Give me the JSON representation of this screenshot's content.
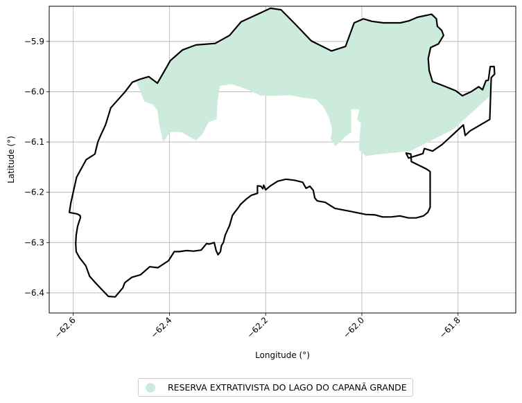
{
  "chart_data": {
    "type": "map",
    "xlabel": "Longitude (°)",
    "ylabel": "Latitude (°)",
    "xlim": [
      -62.65,
      -61.68
    ],
    "ylim": [
      -6.44,
      -5.83
    ],
    "grid": true,
    "x_ticks": [
      {
        "value": -62.6,
        "label": "−62.6"
      },
      {
        "value": -62.4,
        "label": "−62.4"
      },
      {
        "value": -62.2,
        "label": "−62.2"
      },
      {
        "value": -62.0,
        "label": "−62.0"
      },
      {
        "value": -61.8,
        "label": "−61.8"
      }
    ],
    "y_ticks": [
      {
        "value": -5.9,
        "label": "−5.9"
      },
      {
        "value": -6.0,
        "label": "−6.0"
      },
      {
        "value": -6.1,
        "label": "−6.1"
      },
      {
        "value": -6.2,
        "label": "−6.2"
      },
      {
        "value": -6.3,
        "label": "−6.3"
      },
      {
        "value": -6.4,
        "label": "−6.4"
      }
    ],
    "legend": {
      "placement": "bottom-center",
      "entries": [
        {
          "label": "RESERVA EXTRATIVISTA DO LAGO DO CAPANÃ GRANDE",
          "color": "#cdebdd",
          "marker": "circle"
        }
      ]
    },
    "layers": [
      {
        "kind": "outline",
        "stroke": "#000000",
        "coords": [
          [
            -62.461,
            -5.975
          ],
          [
            -62.443,
            -5.97
          ],
          [
            -62.425,
            -5.983
          ],
          [
            -62.398,
            -5.938
          ],
          [
            -62.373,
            -5.917
          ],
          [
            -62.345,
            -5.907
          ],
          [
            -62.305,
            -5.904
          ],
          [
            -62.275,
            -5.888
          ],
          [
            -62.251,
            -5.861
          ],
          [
            -62.208,
            -5.842
          ],
          [
            -62.19,
            -5.834
          ],
          [
            -62.168,
            -5.837
          ],
          [
            -62.138,
            -5.866
          ],
          [
            -62.105,
            -5.899
          ],
          [
            -62.063,
            -5.919
          ],
          [
            -62.034,
            -5.91
          ],
          [
            -62.016,
            -5.863
          ],
          [
            -61.997,
            -5.855
          ],
          [
            -61.979,
            -5.86
          ],
          [
            -61.955,
            -5.863
          ],
          [
            -61.92,
            -5.863
          ],
          [
            -61.902,
            -5.859
          ],
          [
            -61.885,
            -5.852
          ],
          [
            -61.855,
            -5.846
          ],
          [
            -61.845,
            -5.855
          ],
          [
            -61.843,
            -5.87
          ],
          [
            -61.834,
            -5.878
          ],
          [
            -61.83,
            -5.888
          ],
          [
            -61.841,
            -5.905
          ],
          [
            -61.857,
            -5.912
          ],
          [
            -61.862,
            -5.934
          ],
          [
            -61.86,
            -5.958
          ],
          [
            -61.853,
            -5.98
          ],
          [
            -61.828,
            -5.989
          ],
          [
            -61.805,
            -5.998
          ],
          [
            -61.791,
            -6.008
          ],
          [
            -61.773,
            -6.0
          ],
          [
            -61.757,
            -5.99
          ],
          [
            -61.749,
            -5.996
          ],
          [
            -61.742,
            -5.978
          ],
          [
            -61.737,
            -5.977
          ],
          [
            -61.733,
            -5.95
          ],
          [
            -61.725,
            -5.95
          ],
          [
            -61.724,
            -5.965
          ],
          [
            -61.731,
            -5.972
          ],
          [
            -61.734,
            -6.055
          ],
          [
            -61.775,
            -6.078
          ],
          [
            -61.785,
            -6.087
          ],
          [
            -61.789,
            -6.066
          ],
          [
            -61.833,
            -6.105
          ],
          [
            -61.853,
            -6.118
          ],
          [
            -61.87,
            -6.113
          ],
          [
            -61.873,
            -6.123
          ],
          [
            -61.903,
            -6.132
          ],
          [
            -61.908,
            -6.122
          ],
          [
            -61.898,
            -6.124
          ],
          [
            -61.897,
            -6.139
          ],
          [
            -61.867,
            -6.153
          ],
          [
            -61.862,
            -6.156
          ],
          [
            -61.858,
            -6.159
          ],
          [
            -61.858,
            -6.23
          ],
          [
            -61.863,
            -6.24
          ],
          [
            -61.872,
            -6.247
          ],
          [
            -61.887,
            -6.251
          ],
          [
            -61.903,
            -6.251
          ],
          [
            -61.921,
            -6.247
          ],
          [
            -61.939,
            -6.249
          ],
          [
            -61.957,
            -6.249
          ],
          [
            -61.972,
            -6.245
          ],
          [
            -61.992,
            -6.244
          ],
          [
            -62.023,
            -6.238
          ],
          [
            -62.056,
            -6.232
          ],
          [
            -62.076,
            -6.22
          ],
          [
            -62.093,
            -6.217
          ],
          [
            -62.098,
            -6.211
          ],
          [
            -62.101,
            -6.196
          ],
          [
            -62.108,
            -6.188
          ],
          [
            -62.116,
            -6.192
          ],
          [
            -62.123,
            -6.18
          ],
          [
            -62.14,
            -6.176
          ],
          [
            -62.158,
            -6.174
          ],
          [
            -62.175,
            -6.178
          ],
          [
            -62.19,
            -6.187
          ],
          [
            -62.2,
            -6.195
          ],
          [
            -62.204,
            -6.186
          ],
          [
            -62.206,
            -6.193
          ],
          [
            -62.21,
            -6.188
          ],
          [
            -62.217,
            -6.187
          ],
          [
            -62.217,
            -6.202
          ],
          [
            -62.23,
            -6.206
          ],
          [
            -62.241,
            -6.214
          ],
          [
            -62.252,
            -6.224
          ],
          [
            -62.258,
            -6.232
          ],
          [
            -62.263,
            -6.238
          ],
          [
            -62.269,
            -6.246
          ],
          [
            -62.275,
            -6.266
          ],
          [
            -62.284,
            -6.285
          ],
          [
            -62.288,
            -6.3
          ],
          [
            -62.292,
            -6.306
          ],
          [
            -62.294,
            -6.318
          ],
          [
            -62.299,
            -6.324
          ],
          [
            -62.303,
            -6.316
          ],
          [
            -62.307,
            -6.3
          ],
          [
            -62.317,
            -6.303
          ],
          [
            -62.323,
            -6.302
          ],
          [
            -62.334,
            -6.315
          ],
          [
            -62.35,
            -6.317
          ],
          [
            -62.364,
            -6.316
          ],
          [
            -62.38,
            -6.318
          ],
          [
            -62.39,
            -6.318
          ],
          [
            -62.402,
            -6.336
          ],
          [
            -62.424,
            -6.35
          ],
          [
            -62.441,
            -6.348
          ],
          [
            -62.46,
            -6.364
          ],
          [
            -62.478,
            -6.369
          ],
          [
            -62.493,
            -6.38
          ],
          [
            -62.497,
            -6.39
          ],
          [
            -62.513,
            -6.408
          ],
          [
            -62.527,
            -6.407
          ],
          [
            -62.552,
            -6.382
          ],
          [
            -62.566,
            -6.367
          ],
          [
            -62.574,
            -6.346
          ],
          [
            -62.587,
            -6.33
          ],
          [
            -62.594,
            -6.318
          ],
          [
            -62.595,
            -6.302
          ],
          [
            -62.594,
            -6.285
          ],
          [
            -62.591,
            -6.268
          ],
          [
            -62.585,
            -6.25
          ],
          [
            -62.586,
            -6.246
          ],
          [
            -62.592,
            -6.243
          ],
          [
            -62.608,
            -6.24
          ],
          [
            -62.605,
            -6.221
          ],
          [
            -62.593,
            -6.17
          ],
          [
            -62.573,
            -6.135
          ],
          [
            -62.555,
            -6.124
          ],
          [
            -62.549,
            -6.1
          ],
          [
            -62.543,
            -6.087
          ],
          [
            -62.533,
            -6.066
          ],
          [
            -62.522,
            -6.032
          ],
          [
            -62.493,
            -6.001
          ],
          [
            -62.477,
            -5.981
          ],
          [
            -62.461,
            -5.975
          ]
        ]
      },
      {
        "kind": "fill",
        "name": "RESERVA EXTRATIVISTA DO LAGO DO CAPANÃ GRANDE",
        "color": "#cdebdd",
        "coords": [
          [
            -62.47,
            -5.977
          ],
          [
            -62.443,
            -5.97
          ],
          [
            -62.425,
            -5.983
          ],
          [
            -62.398,
            -5.938
          ],
          [
            -62.373,
            -5.917
          ],
          [
            -62.345,
            -5.907
          ],
          [
            -62.305,
            -5.904
          ],
          [
            -62.275,
            -5.888
          ],
          [
            -62.251,
            -5.861
          ],
          [
            -62.208,
            -5.842
          ],
          [
            -62.19,
            -5.834
          ],
          [
            -62.168,
            -5.837
          ],
          [
            -62.138,
            -5.866
          ],
          [
            -62.105,
            -5.899
          ],
          [
            -62.063,
            -5.919
          ],
          [
            -62.034,
            -5.91
          ],
          [
            -62.016,
            -5.863
          ],
          [
            -61.997,
            -5.855
          ],
          [
            -61.979,
            -5.86
          ],
          [
            -61.955,
            -5.863
          ],
          [
            -61.92,
            -5.863
          ],
          [
            -61.902,
            -5.859
          ],
          [
            -61.885,
            -5.852
          ],
          [
            -61.855,
            -5.846
          ],
          [
            -61.845,
            -5.855
          ],
          [
            -61.843,
            -5.87
          ],
          [
            -61.834,
            -5.878
          ],
          [
            -61.83,
            -5.888
          ],
          [
            -61.841,
            -5.905
          ],
          [
            -61.857,
            -5.912
          ],
          [
            -61.862,
            -5.934
          ],
          [
            -61.86,
            -5.958
          ],
          [
            -61.853,
            -5.98
          ],
          [
            -61.828,
            -5.989
          ],
          [
            -61.805,
            -5.998
          ],
          [
            -61.791,
            -6.008
          ],
          [
            -61.773,
            -6.0
          ],
          [
            -61.757,
            -5.99
          ],
          [
            -61.749,
            -5.996
          ],
          [
            -61.742,
            -5.978
          ],
          [
            -61.737,
            -5.977
          ],
          [
            -61.731,
            -5.985
          ],
          [
            -61.733,
            -6.008
          ],
          [
            -61.81,
            -6.075
          ],
          [
            -61.9,
            -6.118
          ],
          [
            -61.97,
            -6.125
          ],
          [
            -61.992,
            -6.128
          ],
          [
            -62.006,
            -6.115
          ],
          [
            -62.005,
            -6.095
          ],
          [
            -62.002,
            -6.063
          ],
          [
            -62.01,
            -6.055
          ],
          [
            -62.005,
            -6.035
          ],
          [
            -62.022,
            -6.035
          ],
          [
            -62.022,
            -6.08
          ],
          [
            -62.035,
            -6.09
          ],
          [
            -62.045,
            -6.1
          ],
          [
            -62.055,
            -6.108
          ],
          [
            -62.065,
            -6.094
          ],
          [
            -62.062,
            -6.075
          ],
          [
            -62.068,
            -6.052
          ],
          [
            -62.08,
            -6.03
          ],
          [
            -62.095,
            -6.015
          ],
          [
            -62.12,
            -6.012
          ],
          [
            -62.15,
            -6.007
          ],
          [
            -62.18,
            -6.008
          ],
          [
            -62.21,
            -6.008
          ],
          [
            -62.24,
            -5.995
          ],
          [
            -62.27,
            -5.985
          ],
          [
            -62.295,
            -5.988
          ],
          [
            -62.3,
            -6.02
          ],
          [
            -62.302,
            -6.055
          ],
          [
            -62.318,
            -6.06
          ],
          [
            -62.332,
            -6.085
          ],
          [
            -62.345,
            -6.097
          ],
          [
            -62.375,
            -6.08
          ],
          [
            -62.398,
            -6.08
          ],
          [
            -62.413,
            -6.1
          ],
          [
            -62.422,
            -6.062
          ],
          [
            -62.425,
            -6.037
          ],
          [
            -62.435,
            -6.025
          ],
          [
            -62.452,
            -6.02
          ],
          [
            -62.47,
            -5.977
          ]
        ]
      }
    ]
  }
}
